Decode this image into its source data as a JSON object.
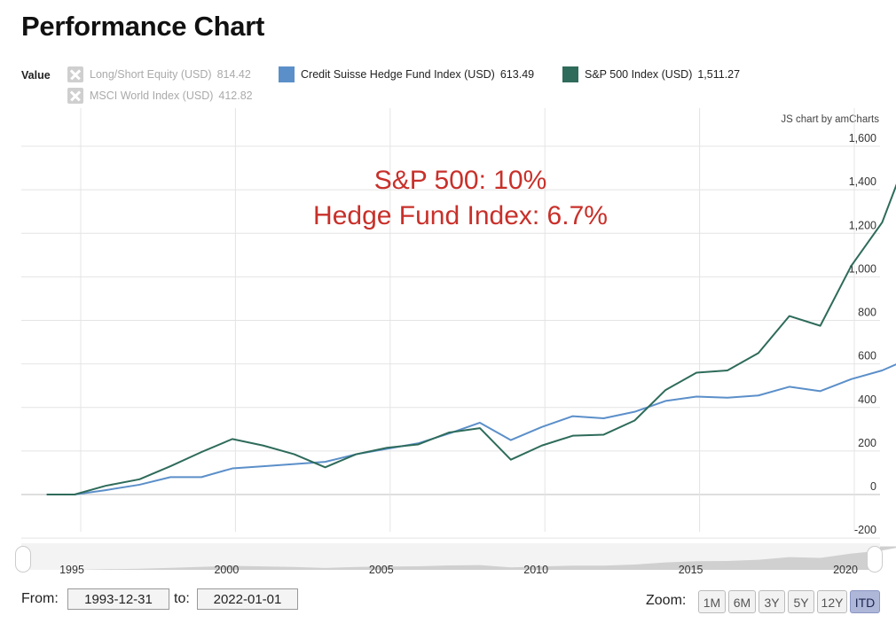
{
  "page": {
    "title": "Performance Chart"
  },
  "legend": {
    "value_label": "Value",
    "items": [
      {
        "name": "Long/Short Equity (USD)",
        "value": "814.42",
        "enabled": false,
        "color": "#cfcfcf"
      },
      {
        "name": "Credit Suisse Hedge Fund Index (USD)",
        "value": "613.49",
        "enabled": true,
        "color": "#5b8fc9"
      },
      {
        "name": "S&P 500 Index (USD)",
        "value": "1,511.27",
        "enabled": true,
        "color": "#2e6b5a"
      },
      {
        "name": "MSCI World Index (USD)",
        "value": "412.82",
        "enabled": false,
        "color": "#cfcfcf"
      }
    ]
  },
  "credit": "JS chart by amCharts",
  "annotation": {
    "line1": "S&P 500: 10%",
    "line2": "Hedge Fund Index: 6.7%",
    "color": "#c8302a"
  },
  "chart_data": {
    "type": "line",
    "ylim": [
      -200,
      1600
    ],
    "yticks": [
      -200,
      0,
      200,
      400,
      600,
      800,
      1000,
      1200,
      1400,
      1600
    ],
    "ytick_labels": [
      "-200",
      "0",
      "200",
      "400",
      "600",
      "800",
      "1,000",
      "1,200",
      "1,400",
      "1,600"
    ],
    "xlim": [
      1993.5,
      2021.6
    ],
    "xticks": [
      1995,
      2000,
      2005,
      2010,
      2015,
      2020
    ],
    "xtick_labels": [
      "1995",
      "2000",
      "2005",
      "2010",
      "2015",
      "2020"
    ],
    "grid": true,
    "series": [
      {
        "name": "Credit Suisse Hedge Fund Index (USD)",
        "color": "#5b8fc9",
        "x": [
          1993.9,
          1994.8,
          1995.8,
          1996.9,
          1997.9,
          1998.9,
          1999.9,
          2000.9,
          2001.9,
          2002.9,
          2003.9,
          2004.9,
          2005.9,
          2006.9,
          2007.9,
          2008.9,
          2009.9,
          2010.9,
          2011.9,
          2012.9,
          2013.9,
          2014.9,
          2015.9,
          2016.9,
          2017.9,
          2018.9,
          2019.9,
          2020.9
        ],
        "y": [
          0,
          0,
          20,
          45,
          80,
          80,
          120,
          130,
          140,
          150,
          185,
          210,
          235,
          280,
          330,
          250,
          310,
          360,
          350,
          380,
          430,
          450,
          445,
          455,
          495,
          475,
          530,
          570
        ]
      },
      {
        "name": "S&P 500 Index (USD)",
        "color": "#2e6b5a",
        "x": [
          1993.9,
          1994.8,
          1995.8,
          1996.9,
          1997.9,
          1998.9,
          1999.9,
          2000.9,
          2001.9,
          2002.9,
          2003.9,
          2004.9,
          2005.9,
          2006.9,
          2007.9,
          2008.9,
          2009.9,
          2010.9,
          2011.9,
          2012.9,
          2013.9,
          2014.9,
          2015.9,
          2016.9,
          2017.9,
          2018.9,
          2019.9,
          2020.9
        ],
        "y": [
          0,
          0,
          40,
          70,
          130,
          195,
          255,
          225,
          185,
          125,
          185,
          215,
          230,
          285,
          305,
          160,
          225,
          270,
          275,
          340,
          480,
          560,
          570,
          650,
          820,
          775,
          1050,
          1250
        ]
      }
    ],
    "series_end": [
      {
        "x": 2021.6,
        "y": 613.49
      },
      {
        "x": 2021.6,
        "y": 1511.27
      }
    ]
  },
  "controls": {
    "from_label": "From:",
    "from_value": "1993-12-31",
    "to_label": "to:",
    "to_value": "2022-01-01",
    "zoom_label": "Zoom:",
    "zoom_buttons": [
      "1M",
      "6M",
      "3Y",
      "5Y",
      "12Y",
      "ITD"
    ],
    "zoom_active": "ITD"
  }
}
